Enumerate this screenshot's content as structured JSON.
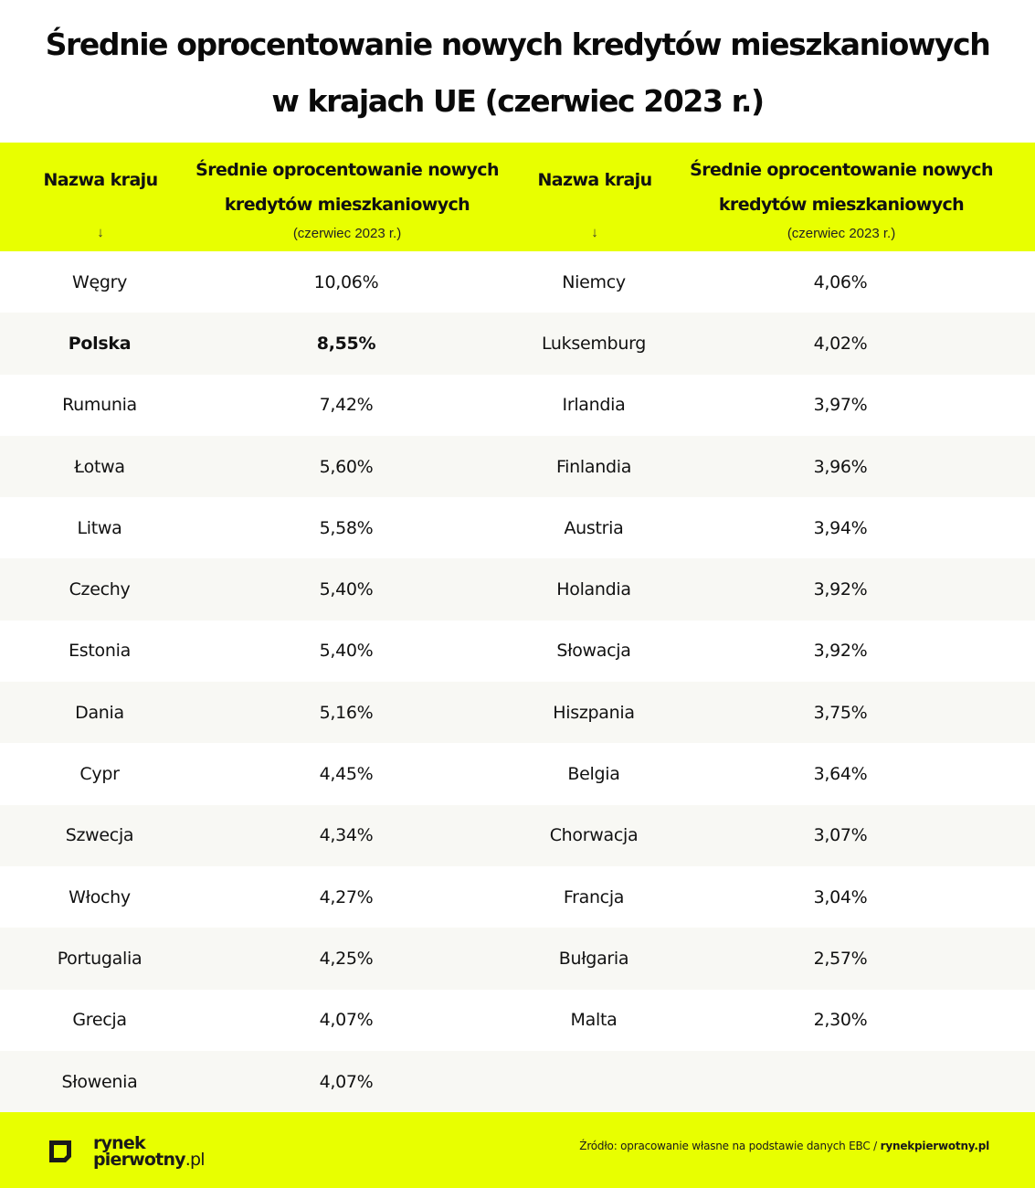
{
  "title": {
    "line1": "Średnie oprocentowanie nowych kredytów mieszkaniowych",
    "line2": "w krajach UE (czerwiec 2023 r.)"
  },
  "header": {
    "name_col": "Nazwa kraju",
    "sort_arrow": "↓",
    "value_col_line1": "Średnie oprocentowanie nowych",
    "value_col_line2": "kredytów mieszkaniowych",
    "value_col_sub": "(czerwiec 2023 r.)"
  },
  "colors": {
    "accent": "#e8ff00",
    "row_alt": "#f8f8f4",
    "text": "#111111"
  },
  "rows": [
    {
      "left_name": "Węgry",
      "left_value": "10,06%",
      "right_name": "Niemcy",
      "right_value": "4,06%"
    },
    {
      "left_name": "Polska",
      "left_value": "8,55%",
      "right_name": "Luksemburg",
      "right_value": "4,02%",
      "left_bold": true
    },
    {
      "left_name": "Rumunia",
      "left_value": "7,42%",
      "right_name": "Irlandia",
      "right_value": "3,97%"
    },
    {
      "left_name": "Łotwa",
      "left_value": "5,60%",
      "right_name": "Finlandia",
      "right_value": "3,96%"
    },
    {
      "left_name": "Litwa",
      "left_value": "5,58%",
      "right_name": "Austria",
      "right_value": "3,94%"
    },
    {
      "left_name": "Czechy",
      "left_value": "5,40%",
      "right_name": "Holandia",
      "right_value": "3,92%"
    },
    {
      "left_name": "Estonia",
      "left_value": "5,40%",
      "right_name": "Słowacja",
      "right_value": "3,92%"
    },
    {
      "left_name": "Dania",
      "left_value": "5,16%",
      "right_name": "Hiszpania",
      "right_value": "3,75%"
    },
    {
      "left_name": "Cypr",
      "left_value": "4,45%",
      "right_name": "Belgia",
      "right_value": "3,64%"
    },
    {
      "left_name": "Szwecja",
      "left_value": "4,34%",
      "right_name": "Chorwacja",
      "right_value": "3,07%"
    },
    {
      "left_name": "Włochy",
      "left_value": "4,27%",
      "right_name": "Francja",
      "right_value": "3,04%"
    },
    {
      "left_name": "Portugalia",
      "left_value": "4,25%",
      "right_name": "Bułgaria",
      "right_value": "2,57%"
    },
    {
      "left_name": "Grecja",
      "left_value": "4,07%",
      "right_name": "Malta",
      "right_value": "2,30%"
    },
    {
      "left_name": "Słowenia",
      "left_value": "4,07%",
      "right_name": "",
      "right_value": ""
    }
  ],
  "footer": {
    "logo_line1": "rynek",
    "logo_line2": "pierwotny",
    "logo_suffix": ".pl",
    "source_prefix": "Źródło: opracowanie własne na podstawie danych EBC / ",
    "source_brand": "rynekpierwotny.pl"
  }
}
